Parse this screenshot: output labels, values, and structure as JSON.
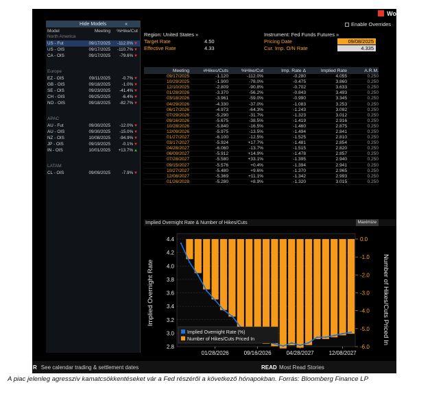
{
  "titlebar": {
    "window_label": "Wo"
  },
  "sidebar": {
    "hide_label": "Hide Models",
    "collapse_glyph": "«",
    "columns": [
      "Model",
      "Meeting",
      "%Hike/Cut"
    ],
    "groups": [
      {
        "region": "North America",
        "rows": [
          {
            "model": "US - Fut",
            "meeting": "09/17/2025",
            "hike": "-112.0%",
            "dir": "down",
            "selected": true
          },
          {
            "model": "US - OIS",
            "meeting": "09/17/2025",
            "hike": "-110.7%",
            "dir": "down"
          },
          {
            "model": "CA - OIS",
            "meeting": "09/17/2025",
            "hike": "-79.6%",
            "dir": "down"
          }
        ]
      },
      {
        "region": "Europe",
        "rows": [
          {
            "model": "EZ - OIS",
            "meeting": "09/11/2025",
            "hike": "-0.7%",
            "dir": "down"
          },
          {
            "model": "GB - OIS",
            "meeting": "09/18/2025",
            "hike": "-1.0%",
            "dir": "down"
          },
          {
            "model": "SE - OIS",
            "meeting": "09/23/2025",
            "hike": "-41.4%",
            "dir": "down"
          },
          {
            "model": "CH - OIS",
            "meeting": "09/25/2025",
            "hike": "-6.4%",
            "dir": "down"
          },
          {
            "model": "NO - OIS",
            "meeting": "09/18/2025",
            "hike": "-82.7%",
            "dir": "down"
          }
        ]
      },
      {
        "region": "APAC",
        "rows": [
          {
            "model": "AU - Fut",
            "meeting": "09/30/2025",
            "hike": "-12.0%",
            "dir": "down"
          },
          {
            "model": "AU - OIS",
            "meeting": "09/30/2025",
            "hike": "-15.0%",
            "dir": "down"
          },
          {
            "model": "NZ - OIS",
            "meeting": "10/08/2025",
            "hike": "-94.9%",
            "dir": "down"
          },
          {
            "model": "JP - OIS",
            "meeting": "09/19/2025",
            "hike": "-0.1%",
            "dir": "down"
          },
          {
            "model": "IN - OIS",
            "meeting": "10/01/2025",
            "hike": "+13.7%",
            "dir": "up"
          }
        ]
      },
      {
        "region": "LATAM",
        "rows": [
          {
            "model": "CL - OIS",
            "meeting": "09/09/2025",
            "hike": "-7.9%",
            "dir": "down"
          }
        ]
      }
    ]
  },
  "info": {
    "region_label": "Region: United States »",
    "target_rate_label": "Target Rate",
    "target_rate_value": "4.50",
    "effective_rate_label": "Effective Rate",
    "effective_rate_value": "4.33",
    "instrument_label": "Instrument: Fed Funds Futures »",
    "pricing_date_label": "Pricing Date",
    "pricing_date_value": "09/08/2025",
    "cur_imp_label": "Cur. Imp. O/N Rate",
    "cur_imp_value": "4.335",
    "enable_overrides": "Enable Overrides"
  },
  "table": {
    "headers": [
      "Meeting",
      "#Hikes/Cuts",
      "%Hike/Cut",
      "Imp. Rate Δ",
      "Implied Rate",
      "A.R.M."
    ],
    "rows": [
      [
        "09/17/2025",
        "-1.120",
        "-112.0%",
        "-0.280",
        "4.055",
        "0.250"
      ],
      [
        "10/29/2025",
        "-1.900",
        "-78.0%",
        "-0.475",
        "3.860",
        "0.250"
      ],
      [
        "12/10/2025",
        "-2.809",
        "-90.8%",
        "-0.702",
        "3.633",
        "0.250"
      ],
      [
        "01/28/2026",
        "-3.370",
        "-56.2%",
        "-0.843",
        "3.493",
        "0.250"
      ],
      [
        "03/18/2026",
        "-3.961",
        "-59.0%",
        "-0.990",
        "3.345",
        "0.250"
      ],
      [
        "04/29/2026",
        "-4.330",
        "-37.0%",
        "-1.083",
        "3.253",
        "0.250"
      ],
      [
        "06/17/2026",
        "-4.973",
        "-64.3%",
        "-1.243",
        "3.092",
        "0.250"
      ],
      [
        "07/29/2026",
        "-5.290",
        "-31.7%",
        "-1.323",
        "3.012",
        "0.250"
      ],
      [
        "09/16/2026",
        "-5.675",
        "-38.5%",
        "-1.419",
        "2.916",
        "0.250"
      ],
      [
        "10/28/2026",
        "-5.840",
        "-16.5%",
        "-1.460",
        "2.875",
        "0.250"
      ],
      [
        "12/09/2026",
        "-5.975",
        "-13.5%",
        "-1.494",
        "2.841",
        "0.250"
      ],
      [
        "01/27/2027",
        "-6.100",
        "-12.5%",
        "-1.525",
        "2.810",
        "0.250"
      ],
      [
        "03/17/2027",
        "-5.924",
        "+17.7%",
        "-1.481",
        "2.854",
        "0.250"
      ],
      [
        "04/28/2027",
        "-6.060",
        "-13.7%",
        "-1.515",
        "2.820",
        "0.250"
      ],
      [
        "06/09/2027",
        "-5.912",
        "+14.9%",
        "-1.478",
        "2.857",
        "0.250"
      ],
      [
        "07/28/2027",
        "-5.580",
        "+33.1%",
        "-1.395",
        "2.940",
        "0.250"
      ],
      [
        "09/15/2027",
        "-5.576",
        "+0.4%",
        "-1.394",
        "2.941",
        "0.250"
      ],
      [
        "10/27/2027",
        "-5.480",
        "+9.6%",
        "-1.370",
        "2.965",
        "0.250"
      ],
      [
        "12/08/2027",
        "-5.369",
        "+11.1%",
        "-1.342",
        "2.993",
        "0.250"
      ],
      [
        "01/26/2028",
        "-5.280",
        "+8.9%",
        "-1.320",
        "3.015",
        "0.250"
      ]
    ]
  },
  "chart_header": {
    "title": "Implied Overnight Rate & Number of Hikes/Cuts",
    "maximize": "Maximize"
  },
  "chart_data": {
    "type": "bar",
    "x": [
      "09/08/2025",
      "09/17/2025",
      "10/29/2025",
      "12/10/2025",
      "01/28/2026",
      "03/18/2026",
      "04/29/2026",
      "06/17/2026",
      "07/29/2026",
      "09/16/2026",
      "10/28/2026",
      "12/09/2026",
      "01/27/2027",
      "03/17/2027",
      "04/28/2027",
      "06/09/2027",
      "07/28/2027",
      "09/15/2027",
      "10/27/2027",
      "12/08/2027",
      "01/26/2028"
    ],
    "x_tick_labels": [
      "01/28/2026",
      "09/16/2026",
      "04/28/2027",
      "12/08/2027"
    ],
    "series": [
      {
        "name": "Implied Overnight Rate (%)",
        "type": "line",
        "axis": "left",
        "color": "#1e73d8",
        "values": [
          4.335,
          4.055,
          3.86,
          3.633,
          3.493,
          3.345,
          3.253,
          3.092,
          3.012,
          2.916,
          2.875,
          2.841,
          2.81,
          2.854,
          2.82,
          2.857,
          2.94,
          2.941,
          2.965,
          2.993,
          3.015
        ]
      },
      {
        "name": "Number of Hikes/Cuts Priced In",
        "type": "bar",
        "axis": "right",
        "color": "#f59a1b",
        "values": [
          0,
          -1.12,
          -1.9,
          -2.809,
          -3.37,
          -3.961,
          -4.33,
          -4.973,
          -5.29,
          -5.675,
          -5.84,
          -5.975,
          -6.1,
          -5.924,
          -6.06,
          -5.912,
          -5.58,
          -5.576,
          -5.48,
          -5.369,
          -5.28
        ]
      }
    ],
    "ylabel_left": "Implied Overnight Rate",
    "ylabel_right": "Number of Hikes/Cuts Priced In",
    "ylim_left": [
      2.8,
      4.4
    ],
    "ylim_right": [
      -6.0,
      0.0
    ],
    "yticks_left": [
      "4.4",
      "4.2",
      "4.0",
      "3.8",
      "3.6",
      "3.4",
      "3.2",
      "3.0",
      "2.8"
    ],
    "yticks_right": [
      "0.0",
      "-1.0",
      "-2.0",
      "-3.0",
      "-4.0",
      "-5.0",
      "-6.0"
    ],
    "legend_position": "bottom-left",
    "grid": true
  },
  "bottom_bar": {
    "key1": "R",
    "text1": "See calendar trading & settlement dates",
    "key2": "READ",
    "text2": "Most Read Stories"
  },
  "caption": "A piac jelenleg agresszív kamatcsökkentéseket vár a Fed részéről a következő hónapokban. Forrás: Bloomberg Finance LP",
  "colors": {
    "accent": "#f4a31e",
    "bar": "#f59a1b",
    "line": "#1e73d8",
    "selected_row": "#233b62",
    "down": "#e23a3a",
    "up": "#35c035"
  }
}
